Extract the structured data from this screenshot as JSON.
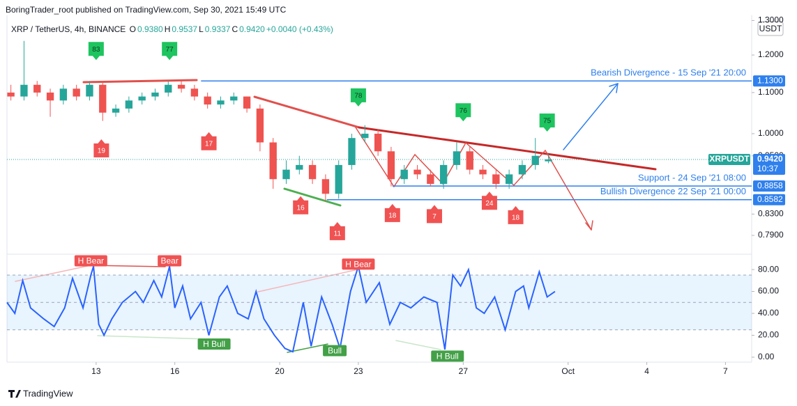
{
  "header": {
    "publisher": "BoringTrader_root published on TradingView.com, Sep 30, 2021 15:49 UTC",
    "symbol": "XRP / TetherUS, 4h, BINANCE",
    "ohlc": [
      {
        "key": "O",
        "value": "0.9380"
      },
      {
        "key": "H",
        "value": "0.9537"
      },
      {
        "key": "L",
        "value": "0.9337"
      },
      {
        "key": "C",
        "value": "0.9420"
      }
    ],
    "change": "+0.0040 (+0.43%)",
    "currency": "USDT",
    "footer": "TradingView"
  },
  "chart_data": [
    {
      "type": "candlestick",
      "ylog": true,
      "xlim": [
        9.6,
        38.0
      ],
      "ylim": [
        0.76,
        1.303
      ],
      "xticks": [
        13,
        16,
        20,
        23,
        27,
        {
          "value": 31,
          "label": "Oct"
        },
        {
          "value": 34,
          "label": "4"
        },
        {
          "value": 37,
          "label": "7"
        }
      ],
      "yticks": [
        {
          "value": 1.3,
          "label": "1.3000"
        },
        {
          "value": 1.2,
          "label": "1.2000"
        },
        {
          "value": 1.1,
          "label": "1.1000"
        },
        {
          "value": 1.0,
          "label": "1.0000"
        },
        {
          "value": 0.95,
          "label": "0.9500"
        },
        {
          "value": 0.83,
          "label": "0.8300"
        },
        {
          "value": 0.79,
          "label": "0.7900"
        }
      ],
      "up_color": "#26a69a",
      "down_color": "#ef5350",
      "candles": [
        {
          "x": 9.75,
          "o": 1.1,
          "h": 1.12,
          "l": 1.08,
          "c": 1.09
        },
        {
          "x": 10.25,
          "o": 1.09,
          "h": 1.24,
          "l": 1.08,
          "c": 1.12
        },
        {
          "x": 10.75,
          "o": 1.12,
          "h": 1.13,
          "l": 1.09,
          "c": 1.1
        },
        {
          "x": 11.25,
          "o": 1.1,
          "h": 1.11,
          "l": 1.04,
          "c": 1.08
        },
        {
          "x": 11.75,
          "o": 1.08,
          "h": 1.12,
          "l": 1.07,
          "c": 1.11
        },
        {
          "x": 12.25,
          "o": 1.11,
          "h": 1.12,
          "l": 1.08,
          "c": 1.09
        },
        {
          "x": 12.75,
          "o": 1.09,
          "h": 1.13,
          "l": 1.08,
          "c": 1.12
        },
        {
          "x": 13.25,
          "o": 1.12,
          "h": 1.13,
          "l": 1.03,
          "c": 1.05
        },
        {
          "x": 13.75,
          "o": 1.05,
          "h": 1.07,
          "l": 1.04,
          "c": 1.06
        },
        {
          "x": 14.25,
          "o": 1.06,
          "h": 1.09,
          "l": 1.05,
          "c": 1.08
        },
        {
          "x": 14.75,
          "o": 1.08,
          "h": 1.1,
          "l": 1.07,
          "c": 1.09
        },
        {
          "x": 15.25,
          "o": 1.09,
          "h": 1.11,
          "l": 1.08,
          "c": 1.1
        },
        {
          "x": 15.75,
          "o": 1.1,
          "h": 1.13,
          "l": 1.09,
          "c": 1.12
        },
        {
          "x": 16.25,
          "o": 1.12,
          "h": 1.13,
          "l": 1.1,
          "c": 1.11
        },
        {
          "x": 16.75,
          "o": 1.11,
          "h": 1.12,
          "l": 1.08,
          "c": 1.09
        },
        {
          "x": 17.25,
          "o": 1.09,
          "h": 1.1,
          "l": 1.06,
          "c": 1.07
        },
        {
          "x": 17.75,
          "o": 1.07,
          "h": 1.09,
          "l": 1.06,
          "c": 1.08
        },
        {
          "x": 18.25,
          "o": 1.08,
          "h": 1.1,
          "l": 1.07,
          "c": 1.09
        },
        {
          "x": 18.75,
          "o": 1.09,
          "h": 1.09,
          "l": 1.05,
          "c": 1.06
        },
        {
          "x": 19.25,
          "o": 1.06,
          "h": 1.07,
          "l": 0.96,
          "c": 0.98
        },
        {
          "x": 19.75,
          "o": 0.98,
          "h": 0.99,
          "l": 0.88,
          "c": 0.9
        },
        {
          "x": 20.25,
          "o": 0.9,
          "h": 0.94,
          "l": 0.89,
          "c": 0.92
        },
        {
          "x": 20.75,
          "o": 0.92,
          "h": 0.95,
          "l": 0.91,
          "c": 0.93
        },
        {
          "x": 21.25,
          "o": 0.93,
          "h": 0.94,
          "l": 0.89,
          "c": 0.9
        },
        {
          "x": 21.75,
          "o": 0.9,
          "h": 0.91,
          "l": 0.855,
          "c": 0.87
        },
        {
          "x": 22.25,
          "o": 0.87,
          "h": 0.94,
          "l": 0.86,
          "c": 0.93
        },
        {
          "x": 22.75,
          "o": 0.93,
          "h": 1.0,
          "l": 0.92,
          "c": 0.99
        },
        {
          "x": 23.25,
          "o": 0.99,
          "h": 1.02,
          "l": 0.98,
          "c": 1.0
        },
        {
          "x": 23.75,
          "o": 1.0,
          "h": 1.01,
          "l": 0.95,
          "c": 0.96
        },
        {
          "x": 24.25,
          "o": 0.96,
          "h": 0.97,
          "l": 0.885,
          "c": 0.9
        },
        {
          "x": 24.75,
          "o": 0.9,
          "h": 0.93,
          "l": 0.89,
          "c": 0.92
        },
        {
          "x": 25.25,
          "o": 0.92,
          "h": 0.93,
          "l": 0.9,
          "c": 0.91
        },
        {
          "x": 25.75,
          "o": 0.91,
          "h": 0.92,
          "l": 0.885,
          "c": 0.89
        },
        {
          "x": 26.25,
          "o": 0.89,
          "h": 0.94,
          "l": 0.88,
          "c": 0.93
        },
        {
          "x": 26.75,
          "o": 0.93,
          "h": 0.98,
          "l": 0.92,
          "c": 0.96
        },
        {
          "x": 27.25,
          "o": 0.96,
          "h": 0.97,
          "l": 0.91,
          "c": 0.92
        },
        {
          "x": 27.75,
          "o": 0.92,
          "h": 0.93,
          "l": 0.9,
          "c": 0.91
        },
        {
          "x": 28.25,
          "o": 0.91,
          "h": 0.92,
          "l": 0.88,
          "c": 0.89
        },
        {
          "x": 28.75,
          "o": 0.89,
          "h": 0.92,
          "l": 0.88,
          "c": 0.91
        },
        {
          "x": 29.25,
          "o": 0.91,
          "h": 0.94,
          "l": 0.9,
          "c": 0.93
        },
        {
          "x": 29.75,
          "o": 0.93,
          "h": 0.99,
          "l": 0.92,
          "c": 0.95
        },
        {
          "x": 30.25,
          "o": 0.938,
          "h": 0.9537,
          "l": 0.9337,
          "c": 0.942
        }
      ],
      "price_lines": [
        {
          "value": 1.13,
          "label": "1.1300",
          "text": "Bearish Divergence - 15 Sep '21 20:00",
          "color": "#2f80ed",
          "from": 17.0
        },
        {
          "value": 0.8858,
          "label": "0.8858",
          "text": "Support - 24 Sep '21 08:00",
          "color": "#2f80ed",
          "from": 24.3
        },
        {
          "value": 0.8582,
          "label": "0.8582",
          "text": "Bullish Divergence 22 Sep '21 00:00",
          "color": "#2f80ed",
          "from": 21.8
        }
      ],
      "last_price": {
        "value": 0.942,
        "label": "0.9420",
        "symbol": "XRPUSDT",
        "countdown": "10:37"
      },
      "annotations": [
        {
          "text": "83",
          "x": 13.0,
          "y": 1.217,
          "kind": "top"
        },
        {
          "text": "77",
          "x": 15.8,
          "y": 1.217,
          "kind": "top"
        },
        {
          "text": "78",
          "x": 23.0,
          "y": 1.093,
          "kind": "top"
        },
        {
          "text": "76",
          "x": 27.0,
          "y": 1.056,
          "kind": "top"
        },
        {
          "text": "75",
          "x": 30.2,
          "y": 1.031,
          "kind": "top"
        },
        {
          "text": "19",
          "x": 13.2,
          "y": 0.962,
          "kind": "bottom"
        },
        {
          "text": "17",
          "x": 17.3,
          "y": 0.978,
          "kind": "bottom"
        },
        {
          "text": "16",
          "x": 20.8,
          "y": 0.843,
          "kind": "bottom"
        },
        {
          "text": "11",
          "x": 22.2,
          "y": 0.794,
          "kind": "bottom"
        },
        {
          "text": "18",
          "x": 24.3,
          "y": 0.828,
          "kind": "bottom"
        },
        {
          "text": "7",
          "x": 25.9,
          "y": 0.826,
          "kind": "bottom"
        },
        {
          "text": "24",
          "x": 28.0,
          "y": 0.852,
          "kind": "bottom"
        },
        {
          "text": "18",
          "x": 29.0,
          "y": 0.824,
          "kind": "bottom"
        }
      ]
    },
    {
      "type": "line",
      "xlim": [
        9.6,
        38.0
      ],
      "ylim": [
        -4.5,
        93.4
      ],
      "yticks": [
        {
          "value": 80,
          "label": "80.00"
        },
        {
          "value": 60,
          "label": "60.00"
        },
        {
          "value": 40,
          "label": "40.00"
        },
        {
          "value": 20,
          "label": "20.00"
        },
        {
          "value": 0,
          "label": "0.00"
        }
      ],
      "band": [
        25,
        75
      ],
      "midline": 50,
      "color": "#2962ff",
      "x": [
        9.6,
        9.9,
        10.2,
        10.5,
        11.0,
        11.4,
        11.8,
        12.1,
        12.5,
        12.8,
        12.9,
        13.1,
        13.3,
        13.6,
        14.0,
        14.5,
        14.8,
        15.2,
        15.5,
        15.8,
        16.0,
        16.3,
        16.6,
        17.0,
        17.3,
        17.7,
        18.0,
        18.4,
        18.8,
        19.1,
        19.4,
        19.8,
        20.2,
        20.5,
        20.9,
        21.2,
        21.6,
        22.0,
        22.3,
        22.7,
        23.0,
        23.3,
        23.8,
        24.2,
        24.6,
        25.0,
        25.5,
        26.0,
        26.3,
        26.6,
        26.9,
        27.2,
        27.5,
        27.8,
        28.2,
        28.6,
        29.0,
        29.3,
        29.5,
        29.9,
        30.2,
        30.5
      ],
      "values": [
        50,
        40,
        70,
        45,
        35,
        28,
        45,
        72,
        45,
        75,
        83,
        30,
        20,
        35,
        50,
        60,
        50,
        70,
        55,
        83,
        45,
        65,
        35,
        50,
        20,
        55,
        65,
        40,
        35,
        60,
        35,
        20,
        8,
        5,
        50,
        10,
        55,
        30,
        8,
        60,
        83,
        50,
        68,
        30,
        50,
        45,
        55,
        50,
        7,
        75,
        65,
        80,
        45,
        40,
        55,
        25,
        60,
        65,
        45,
        78,
        55,
        60
      ],
      "annotations": [
        {
          "text": "H Bear",
          "x": 12.8,
          "y": 88,
          "kind": "bear"
        },
        {
          "text": "Bear",
          "x": 15.8,
          "y": 88,
          "kind": "bear"
        },
        {
          "text": "H Bull",
          "x": 17.5,
          "y": 12,
          "kind": "bull"
        },
        {
          "text": "Bull",
          "x": 22.1,
          "y": 6,
          "kind": "bull"
        },
        {
          "text": "H Bear",
          "x": 23.0,
          "y": 85,
          "kind": "bear"
        },
        {
          "text": "H Bull",
          "x": 26.4,
          "y": 1,
          "kind": "bull"
        }
      ]
    }
  ]
}
